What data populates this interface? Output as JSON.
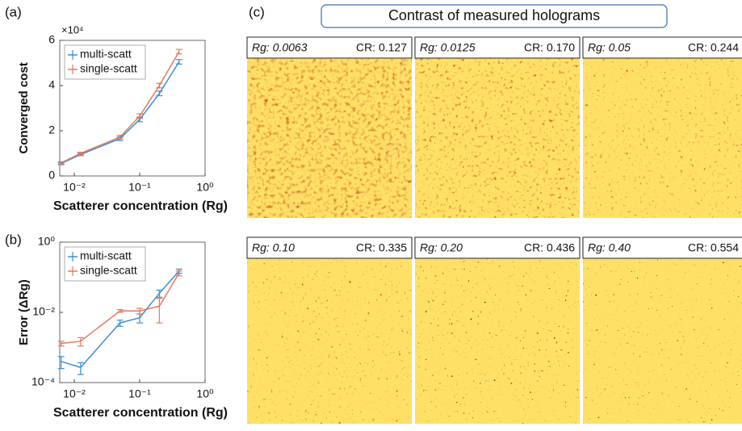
{
  "chart_data": [
    {
      "type": "line",
      "panel_label": "(a)",
      "ylabel": "Converged cost",
      "xlabel": "Scatterer concentration (Rg)",
      "xscale": "log",
      "yscale": "linear",
      "y_multiplier": "×10⁴",
      "x": [
        0.0063,
        0.0125,
        0.05,
        0.1,
        0.2,
        0.4
      ],
      "xlim": [
        0.006,
        1
      ],
      "xticks": [
        {
          "value": 0.01,
          "label": "10⁻²"
        },
        {
          "value": 0.1,
          "label": "10⁻¹"
        },
        {
          "value": 1,
          "label": "10⁰"
        }
      ],
      "ylim": [
        0,
        6
      ],
      "yticks": [
        0,
        2,
        4,
        6
      ],
      "legend": "upper left",
      "series": [
        {
          "name": "multi-scatt",
          "color": "#3b8fd1",
          "values": [
            0.55,
            0.95,
            1.65,
            2.5,
            3.65,
            5.05
          ],
          "errors": [
            0.05,
            0.05,
            0.08,
            0.1,
            0.1,
            0.1
          ]
        },
        {
          "name": "single-scatt",
          "color": "#e8785a",
          "values": [
            0.58,
            1.0,
            1.72,
            2.65,
            4.0,
            5.5
          ],
          "errors": [
            0.05,
            0.05,
            0.08,
            0.1,
            0.1,
            0.1
          ]
        }
      ]
    },
    {
      "type": "line",
      "panel_label": "(b)",
      "ylabel": "Error (ΔRg)",
      "xlabel": "Scatterer concentration (Rg)",
      "xscale": "log",
      "yscale": "log",
      "x": [
        0.0063,
        0.0125,
        0.05,
        0.1,
        0.2,
        0.4
      ],
      "xlim": [
        0.006,
        1
      ],
      "xticks": [
        {
          "value": 0.01,
          "label": "10⁻²"
        },
        {
          "value": 0.1,
          "label": "10⁻¹"
        },
        {
          "value": 1,
          "label": "10⁰"
        }
      ],
      "ylim": [
        0.0001,
        1
      ],
      "yticks": [
        {
          "value": 0.0001,
          "label": "10⁻⁴"
        },
        {
          "value": 0.01,
          "label": "10⁻²"
        },
        {
          "value": 1,
          "label": "10⁰"
        }
      ],
      "legend": "upper left",
      "series": [
        {
          "name": "multi-scatt",
          "color": "#3b8fd1",
          "values": [
            0.0004,
            0.00027,
            0.005,
            0.007,
            0.035,
            0.15
          ],
          "errors": [
            0.00015,
            0.0001,
            0.001,
            0.002,
            0.008,
            0.02
          ]
        },
        {
          "name": "single-scatt",
          "color": "#e8785a",
          "values": [
            0.0013,
            0.0015,
            0.011,
            0.011,
            0.015,
            0.13
          ],
          "errors": [
            0.0002,
            0.0004,
            0.001,
            0.002,
            0.01,
            0.02
          ]
        }
      ]
    }
  ],
  "panel_c": {
    "panel_label": "(c)",
    "title": "Contrast of measured holograms",
    "images": [
      {
        "rg": "Rg: 0.0063",
        "cr": "CR: 0.127"
      },
      {
        "rg": "Rg: 0.0125",
        "cr": "CR: 0.170"
      },
      {
        "rg": "Rg: 0.05",
        "cr": "CR: 0.244"
      },
      {
        "rg": "Rg: 0.10",
        "cr": "CR: 0.335"
      },
      {
        "rg": "Rg: 0.20",
        "cr": "CR: 0.436"
      },
      {
        "rg": "Rg: 0.40",
        "cr": "CR: 0.554"
      }
    ]
  }
}
